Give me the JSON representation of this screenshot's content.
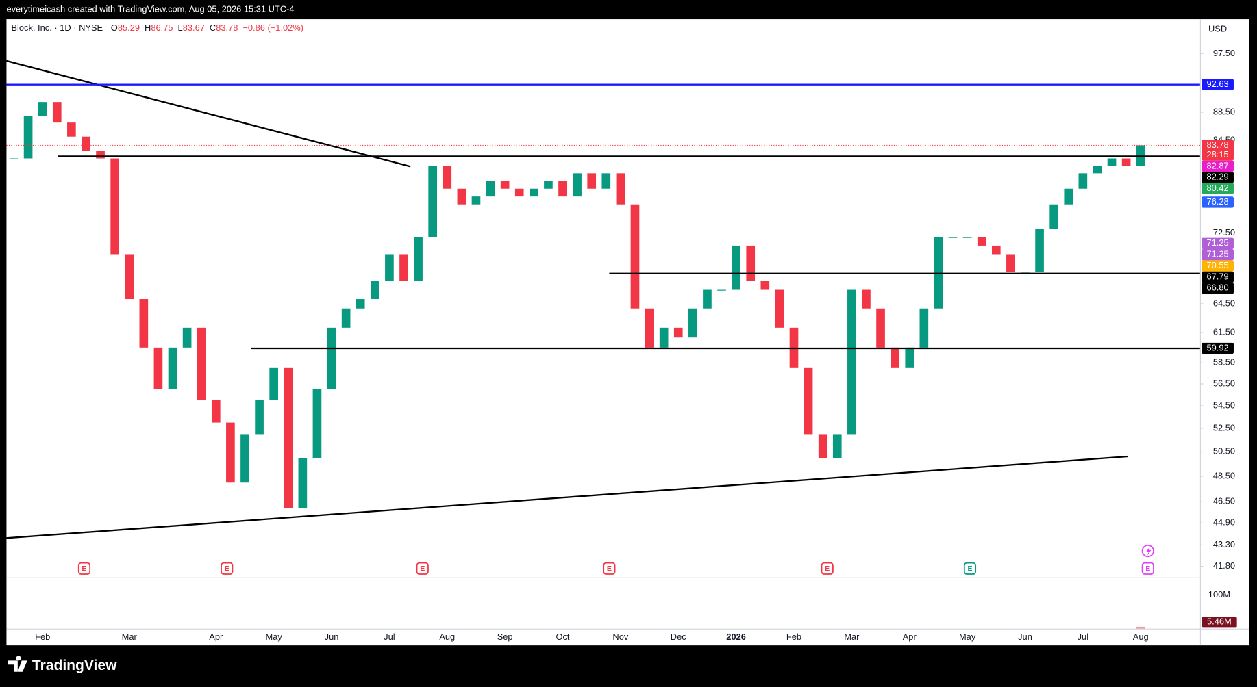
{
  "header": "everytimeicash created with TradingView.com, Aug 05, 2026 15:31 UTC-4",
  "footer": {
    "brand": "TradingView"
  },
  "chart_data": {
    "type": "candlestick",
    "title": "Block, Inc. · 1D · NYSE",
    "ohlc": [
      {
        "label": "O",
        "value": 85.29
      },
      {
        "label": "H",
        "value": 86.75
      },
      {
        "label": "L",
        "value": 83.67
      },
      {
        "label": "C",
        "value": 83.78
      }
    ],
    "change": "−0.86 (−1.02%)",
    "currency": "USD",
    "categories": [
      null,
      null,
      "Feb",
      null,
      null,
      null,
      null,
      null,
      "Mar",
      null,
      null,
      null,
      null,
      null,
      "Apr",
      null,
      null,
      null,
      "May",
      null,
      null,
      null,
      "Jun",
      null,
      null,
      null,
      "Jul",
      null,
      null,
      null,
      "Aug",
      null,
      null,
      null,
      "Sep",
      null,
      null,
      null,
      "Oct",
      null,
      null,
      null,
      "Nov",
      null,
      null,
      null,
      "Dec",
      null,
      null,
      null,
      "2026",
      null,
      null,
      null,
      "Feb",
      null,
      null,
      null,
      "Mar",
      null,
      null,
      null,
      "Apr",
      null,
      null,
      null,
      "May",
      null,
      null,
      null,
      "Jun",
      null,
      null,
      null,
      "Jul",
      null,
      null,
      null,
      "Aug"
    ],
    "values": [
      82,
      88,
      90,
      87,
      85,
      83,
      82,
      70,
      65,
      60,
      56,
      60,
      62,
      55,
      53,
      48,
      52,
      55,
      58,
      46,
      50,
      56,
      62,
      64,
      65,
      67,
      70,
      67,
      72,
      81,
      78,
      76,
      77,
      79,
      78,
      77,
      78,
      79,
      77,
      80,
      78,
      80,
      76,
      64,
      60,
      62,
      61,
      64,
      66,
      66,
      71,
      67,
      66,
      62,
      58,
      52,
      50,
      52,
      66,
      64,
      60,
      58,
      60,
      64,
      72,
      72,
      72,
      71,
      70,
      68,
      68,
      73,
      76,
      78,
      80,
      81,
      82,
      81,
      83.78
    ],
    "colors": {
      "up": "#089981",
      "down": "#f23645"
    },
    "log_scale": true,
    "ylim": [
      41.1,
      103.2
    ],
    "yticks": [
      {
        "value": 97.5,
        "label": "97.50"
      },
      {
        "value": 88.5,
        "label": "88.50"
      },
      {
        "value": 84.5,
        "label": "84.50"
      },
      {
        "value": 72.5,
        "label": "72.50"
      },
      {
        "value": 64.5,
        "label": "64.50"
      },
      {
        "value": 61.5,
        "label": "61.50"
      },
      {
        "value": 58.5,
        "label": "58.50"
      },
      {
        "value": 56.5,
        "label": "56.50"
      },
      {
        "value": 54.5,
        "label": "54.50"
      },
      {
        "value": 52.5,
        "label": "52.50"
      },
      {
        "value": 50.5,
        "label": "50.50"
      },
      {
        "value": 48.5,
        "label": "48.50"
      },
      {
        "value": 46.5,
        "label": "46.50"
      },
      {
        "value": 44.9,
        "label": "44.90"
      },
      {
        "value": 43.3,
        "label": "43.30"
      },
      {
        "value": 41.8,
        "label": "41.80"
      }
    ],
    "price_tags": [
      {
        "value": 92.63,
        "label": "92.63",
        "color": "#1a1aff",
        "line": true
      },
      {
        "value": 83.78,
        "label": "83.78",
        "color": "#f23645",
        "line": true
      },
      {
        "value": 82.87,
        "label": "82.87",
        "color": "#e91ec8",
        "line": false
      },
      {
        "value": 82.29,
        "label": "82.29",
        "color": "#000000",
        "line": true
      },
      {
        "value": 80.42,
        "label": "80.42",
        "color": "#22ab59",
        "line": false
      },
      {
        "value": 76.28,
        "label": "76.28",
        "color": "#2962ff",
        "line": false
      },
      {
        "value": 71.25,
        "label": "71.25",
        "color": "#b15fd6",
        "line": false
      },
      {
        "value": 71.25,
        "label": "71.25",
        "color": "#b15fd6",
        "line": false
      },
      {
        "value": 70.55,
        "label": "70.55",
        "color": "#ffb300",
        "line": false
      },
      {
        "value": 67.79,
        "label": "67.79",
        "color": "#000000",
        "line": true
      },
      {
        "value": 66.8,
        "label": "66.80",
        "color": "#000000",
        "line": false
      },
      {
        "value": 59.92,
        "label": "59.92",
        "color": "#000000",
        "line": true
      }
    ],
    "countdown": "28:15",
    "volume": {
      "ylim": [
        0,
        150000000
      ],
      "yticks": [
        {
          "value": 100000000,
          "label": "100M"
        }
      ],
      "last": {
        "value": 5460000,
        "label": "5.46M"
      },
      "color": "#f23645"
    },
    "events": [
      "E",
      "E",
      "E",
      "E",
      "E",
      "E",
      "E"
    ]
  }
}
